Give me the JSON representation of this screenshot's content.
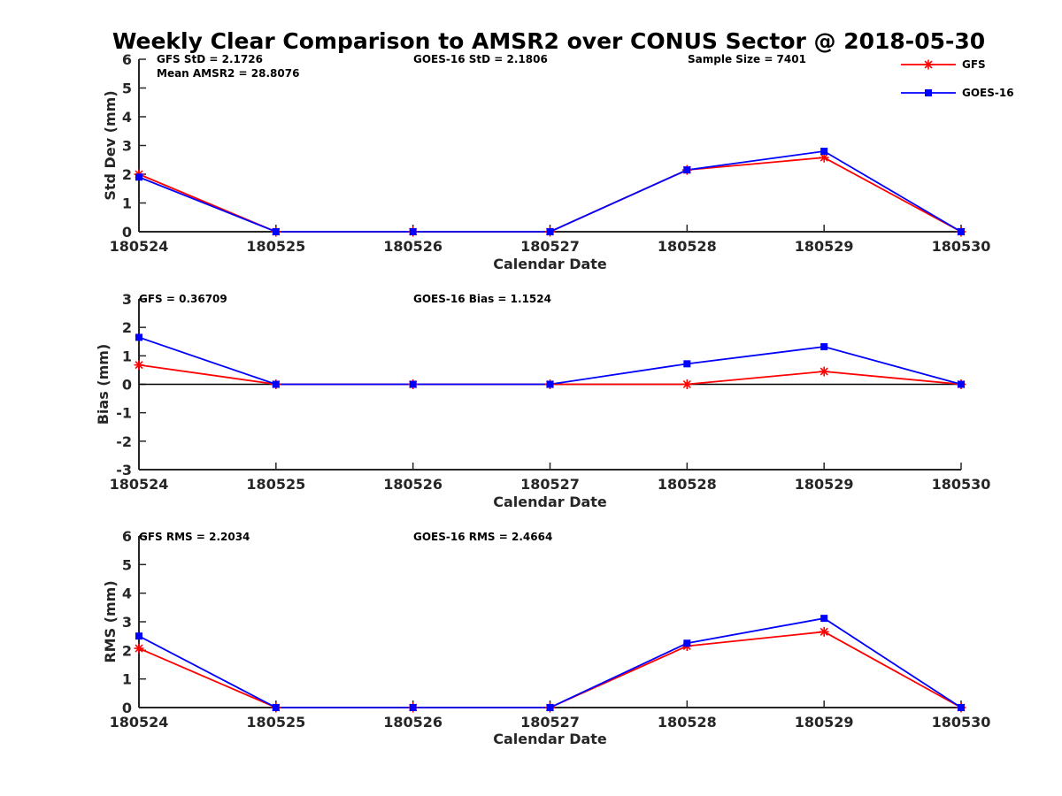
{
  "chart_data": {
    "title": "Weekly Clear Comparison to AMSR2 over CONUS Sector @ 2018-05-30",
    "legend": {
      "placement": "top-right",
      "entries": [
        {
          "label": "GFS",
          "color": "#ff0000",
          "marker": "asterisk"
        },
        {
          "label": "GOES-16",
          "color": "#0000ff",
          "marker": "square"
        }
      ]
    },
    "panels": [
      {
        "type": "line",
        "xlabel": "Calendar Date",
        "ylabel": "Std Dev (mm)",
        "ylim": [
          0,
          6
        ],
        "yticks": [
          "0",
          "1",
          "2",
          "3",
          "4",
          "5",
          "6"
        ],
        "categories": [
          "180524",
          "180525",
          "180526",
          "180527",
          "180528",
          "180529",
          "180530"
        ],
        "zero_line": false,
        "annotations": [
          {
            "text": "GFS StD = 2.1726",
            "position": "left"
          },
          {
            "text": "Mean AMSR2 = 28.8076",
            "position": "left-second-line"
          },
          {
            "text": "GOES-16 StD = 2.1806",
            "position": "center"
          },
          {
            "text": "Sample Size = 7401",
            "position": "right"
          }
        ],
        "series": [
          {
            "name": "GFS",
            "color": "#ff0000",
            "marker": "asterisk",
            "values": [
              2.0,
              0,
              0,
              0,
              2.15,
              2.58,
              0
            ]
          },
          {
            "name": "GOES-16",
            "color": "#0000ff",
            "marker": "square",
            "values": [
              1.9,
              0,
              0,
              0,
              2.15,
              2.8,
              0
            ]
          }
        ]
      },
      {
        "type": "line",
        "xlabel": "Calendar Date",
        "ylabel": "Bias (mm)",
        "ylim": [
          -3,
          3
        ],
        "yticks": [
          "-3",
          "-2",
          "-1",
          "0",
          "1",
          "2",
          "3"
        ],
        "categories": [
          "180524",
          "180525",
          "180526",
          "180527",
          "180528",
          "180529",
          "180530"
        ],
        "zero_line": true,
        "annotations": [
          {
            "text": "GFS = 0.36709",
            "position": "left"
          },
          {
            "text": "GOES-16 Bias  = 1.1524",
            "position": "center"
          }
        ],
        "series": [
          {
            "name": "GFS",
            "color": "#ff0000",
            "marker": "asterisk",
            "values": [
              0.68,
              0,
              0,
              0,
              0,
              0.45,
              0
            ]
          },
          {
            "name": "GOES-16",
            "color": "#0000ff",
            "marker": "square",
            "values": [
              1.65,
              0,
              0,
              0,
              0.72,
              1.32,
              0
            ]
          }
        ]
      },
      {
        "type": "line",
        "xlabel": "Calendar Date",
        "ylabel": "RMS (mm)",
        "ylim": [
          0,
          6
        ],
        "yticks": [
          "0",
          "1",
          "2",
          "3",
          "4",
          "5",
          "6"
        ],
        "categories": [
          "180524",
          "180525",
          "180526",
          "180527",
          "180528",
          "180529",
          "180530"
        ],
        "zero_line": false,
        "annotations": [
          {
            "text": "GFS RMS = 2.2034",
            "position": "left"
          },
          {
            "text": "GOES-16 RMS = 2.4664",
            "position": "center"
          }
        ],
        "series": [
          {
            "name": "GFS",
            "color": "#ff0000",
            "marker": "asterisk",
            "values": [
              2.07,
              0,
              0,
              0,
              2.15,
              2.65,
              0
            ]
          },
          {
            "name": "GOES-16",
            "color": "#0000ff",
            "marker": "square",
            "values": [
              2.5,
              0,
              0,
              0,
              2.25,
              3.12,
              0
            ]
          }
        ]
      }
    ]
  }
}
